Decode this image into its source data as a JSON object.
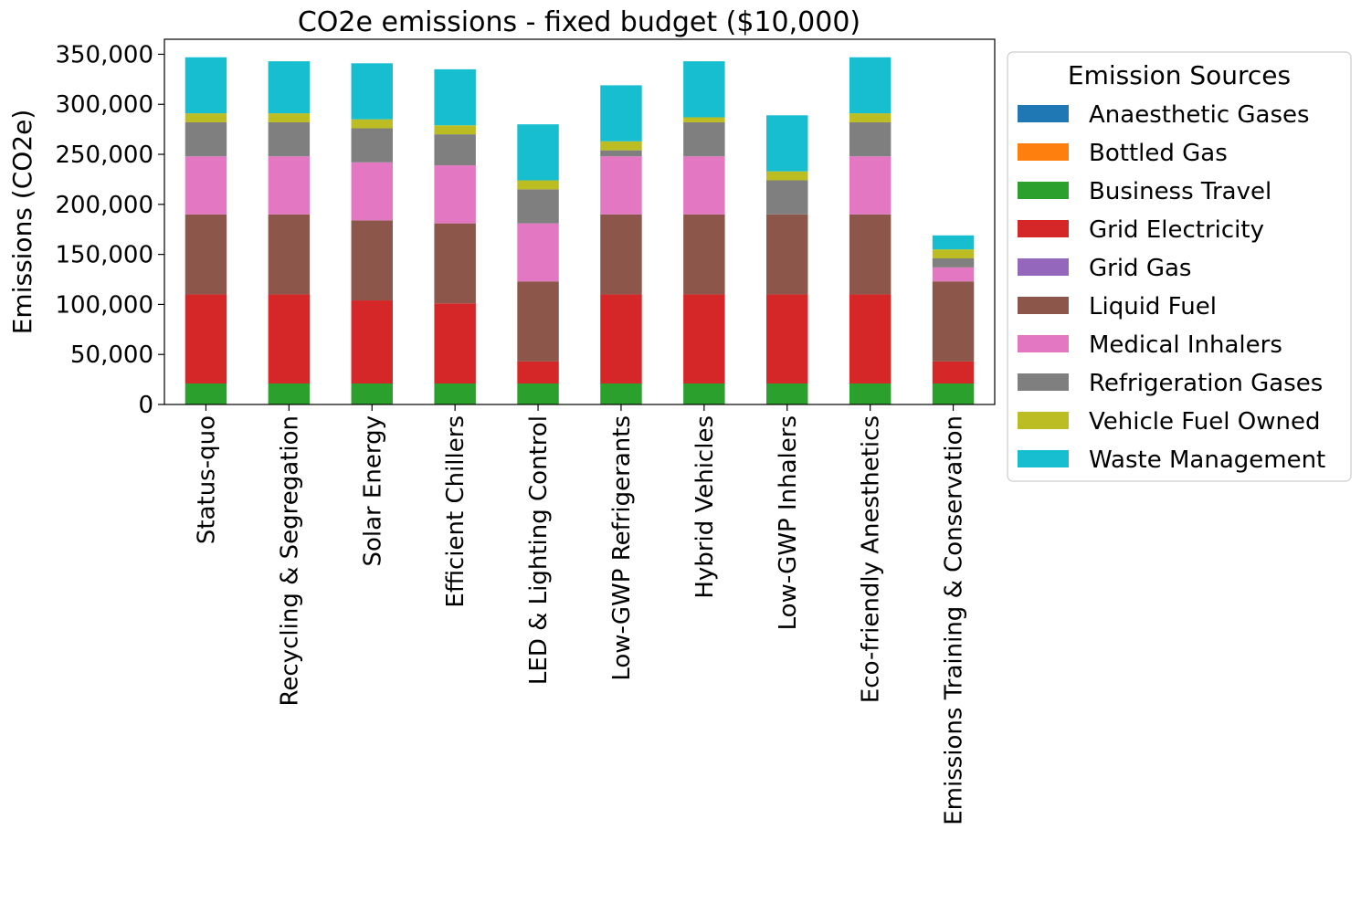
{
  "chart_data": {
    "type": "bar",
    "stacked": true,
    "title": "CO2e emissions - fixed budget ($10,000)",
    "xlabel": "",
    "ylabel": "Emissions (CO2e)",
    "ylim": [
      0,
      365000
    ],
    "yticks": [
      0,
      50000,
      100000,
      150000,
      200000,
      250000,
      300000,
      350000
    ],
    "ytick_labels": [
      "0",
      "50,000",
      "100,000",
      "150,000",
      "200,000",
      "250,000",
      "300,000",
      "350,000"
    ],
    "grid": false,
    "legend": {
      "title": "Emission Sources",
      "placement": "outside-right"
    },
    "categories": [
      "Status-quo",
      "Recycling & Segregation",
      "Solar Energy",
      "Efficient Chillers",
      "LED & Lighting Control",
      "Low-GWP Refrigerants",
      "Hybrid Vehicles",
      "Low-GWP Inhalers",
      "Eco-friendly Anesthetics",
      "Emissions Training & Conservation"
    ],
    "series": [
      {
        "name": "Anaesthetic Gases",
        "color": "#1f77b4",
        "values": [
          0,
          0,
          0,
          0,
          0,
          0,
          0,
          0,
          0,
          0
        ]
      },
      {
        "name": "Bottled Gas",
        "color": "#ff7f0e",
        "values": [
          0,
          0,
          0,
          0,
          0,
          0,
          0,
          0,
          0,
          0
        ]
      },
      {
        "name": "Business Travel",
        "color": "#2ca02c",
        "values": [
          21000,
          21000,
          21000,
          21000,
          21000,
          21000,
          21000,
          21000,
          21000,
          21000
        ]
      },
      {
        "name": "Grid Electricity",
        "color": "#d62728",
        "values": [
          89000,
          89000,
          83000,
          80000,
          22000,
          89000,
          89000,
          89000,
          89000,
          22000
        ]
      },
      {
        "name": "Grid Gas",
        "color": "#9467bd",
        "values": [
          0,
          0,
          0,
          0,
          0,
          0,
          0,
          0,
          0,
          0
        ]
      },
      {
        "name": "Liquid Fuel",
        "color": "#8c564b",
        "values": [
          80000,
          80000,
          80000,
          80000,
          80000,
          80000,
          80000,
          80000,
          80000,
          80000
        ]
      },
      {
        "name": "Medical Inhalers",
        "color": "#e377c2",
        "values": [
          58000,
          58000,
          58000,
          58000,
          58000,
          58000,
          58000,
          0,
          58000,
          14000
        ]
      },
      {
        "name": "Refrigeration Gases",
        "color": "#7f7f7f",
        "values": [
          34000,
          34000,
          34000,
          31000,
          34000,
          6000,
          34000,
          34000,
          34000,
          9000
        ]
      },
      {
        "name": "Vehicle Fuel Owned",
        "color": "#bcbd22",
        "values": [
          9000,
          9000,
          9000,
          9000,
          9000,
          9000,
          5000,
          9000,
          9000,
          9000
        ]
      },
      {
        "name": "Waste Management",
        "color": "#17becf",
        "values": [
          56000,
          52000,
          56000,
          56000,
          56000,
          56000,
          56000,
          56000,
          56000,
          14000
        ]
      }
    ]
  }
}
